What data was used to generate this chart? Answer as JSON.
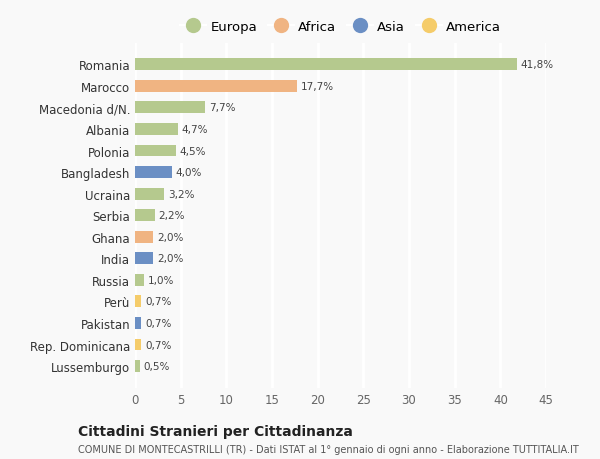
{
  "countries": [
    "Romania",
    "Marocco",
    "Macedonia d/N.",
    "Albania",
    "Polonia",
    "Bangladesh",
    "Ucraina",
    "Serbia",
    "Ghana",
    "India",
    "Russia",
    "Perù",
    "Pakistan",
    "Rep. Dominicana",
    "Lussemburgo"
  ],
  "values": [
    41.8,
    17.7,
    7.7,
    4.7,
    4.5,
    4.0,
    3.2,
    2.2,
    2.0,
    2.0,
    1.0,
    0.7,
    0.7,
    0.7,
    0.5
  ],
  "labels": [
    "41,8%",
    "17,7%",
    "7,7%",
    "4,7%",
    "4,5%",
    "4,0%",
    "3,2%",
    "2,2%",
    "2,0%",
    "2,0%",
    "1,0%",
    "0,7%",
    "0,7%",
    "0,7%",
    "0,5%"
  ],
  "continents": [
    "Europa",
    "Africa",
    "Europa",
    "Europa",
    "Europa",
    "Asia",
    "Europa",
    "Europa",
    "Africa",
    "Asia",
    "Europa",
    "America",
    "Asia",
    "America",
    "Europa"
  ],
  "continent_colors": {
    "Europa": "#b5c98e",
    "Africa": "#f0b482",
    "Asia": "#6b8fc4",
    "America": "#f5cc6a"
  },
  "legend_order": [
    "Europa",
    "Africa",
    "Asia",
    "America"
  ],
  "xlim": [
    0,
    45
  ],
  "xticks": [
    0,
    5,
    10,
    15,
    20,
    25,
    30,
    35,
    40,
    45
  ],
  "title": "Cittadini Stranieri per Cittadinanza",
  "subtitle": "COMUNE DI MONTECASTRILLI (TR) - Dati ISTAT al 1° gennaio di ogni anno - Elaborazione TUTTITALIA.IT",
  "background_color": "#f9f9f9",
  "grid_color": "#ffffff",
  "bar_height": 0.55
}
